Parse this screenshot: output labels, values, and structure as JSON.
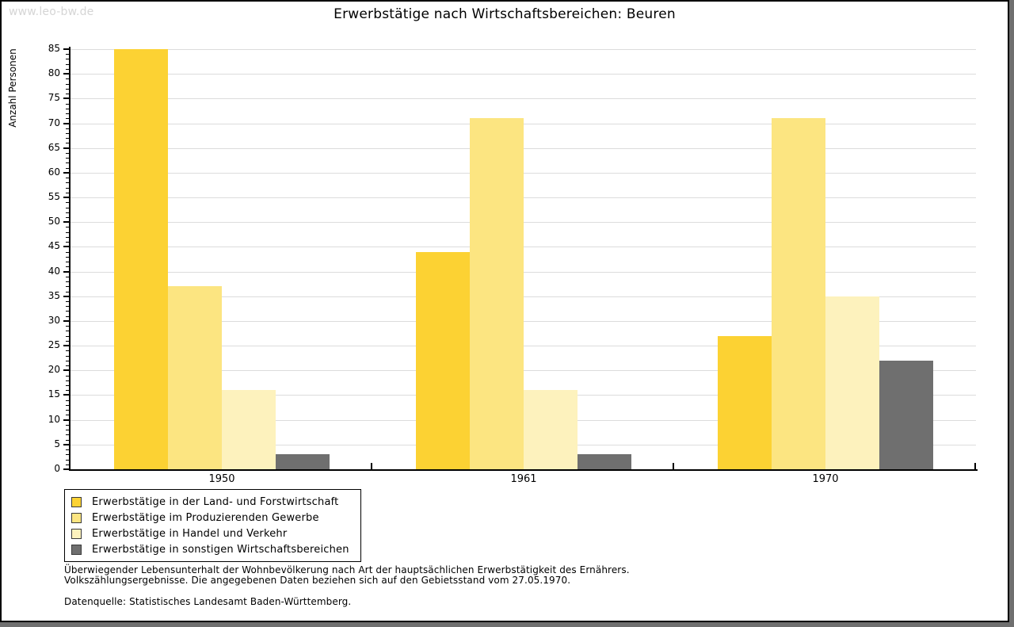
{
  "watermark": "www.leo-bw.de",
  "chart_data": {
    "type": "bar",
    "title": "Erwerbstätige nach Wirtschaftsbereichen: Beuren",
    "ylabel": "Anzahl Personen",
    "xlabel": "",
    "categories": [
      "1950",
      "1961",
      "1970"
    ],
    "series": [
      {
        "name": "Erwerbstätige in der Land- und Forstwirtschaft",
        "color": "#FCD233",
        "values": [
          85,
          44,
          27
        ]
      },
      {
        "name": "Erwerbstätige im Produzierenden Gewerbe",
        "color": "#FCE581",
        "values": [
          37,
          71,
          71
        ]
      },
      {
        "name": "Erwerbstätige in Handel und Verkehr",
        "color": "#FDF2BD",
        "values": [
          16,
          16,
          35
        ]
      },
      {
        "name": "Erwerbstätige in sonstigen Wirtschaftsbereichen",
        "color": "#6F6F6F",
        "values": [
          3,
          3,
          22
        ]
      }
    ],
    "ylim": [
      0,
      85
    ],
    "ytick_step": 5,
    "yminor_step": 1,
    "grid": "horizontal",
    "legend_position": "bottom-left",
    "colors": {
      "gridline": "#DCDCDC",
      "axis": "#000000"
    }
  },
  "footer": {
    "line1": "Überwiegender Lebensunterhalt der Wohnbevölkerung nach Art der hauptsächlichen Erwerbstätigkeit des Ernährers.",
    "line2": "Volkszählungsergebnisse. Die angegebenen Daten beziehen sich auf den Gebietsstand vom 27.05.1970.",
    "source": "Datenquelle: Statistisches Landesamt Baden-Württemberg."
  }
}
